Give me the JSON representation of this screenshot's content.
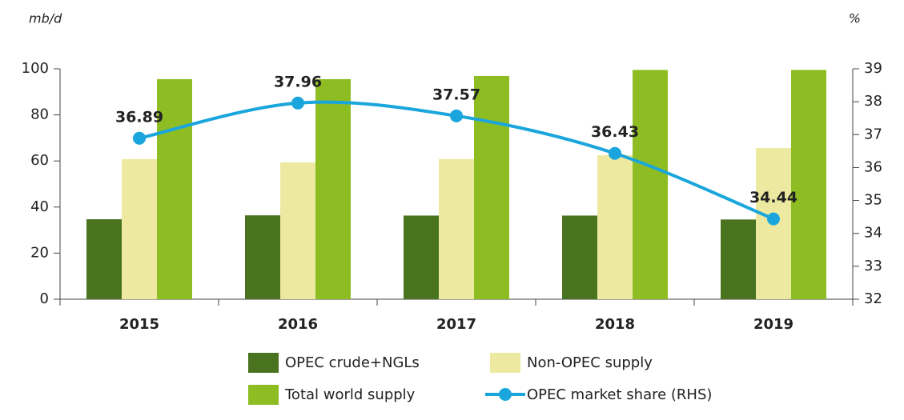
{
  "chart_data": {
    "type": "bar",
    "y_axis_label": "mb/d",
    "y2_axis_label": "%",
    "categories": [
      "2015",
      "2016",
      "2017",
      "2018",
      "2019"
    ],
    "series": [
      {
        "name": "OPEC crude+NGLs",
        "color": "#4a7320",
        "values": [
          34.7,
          36.4,
          36.3,
          36.3,
          34.6
        ]
      },
      {
        "name": "Non-OPEC supply",
        "color": "#ede9a0",
        "values": [
          60.8,
          59.4,
          60.8,
          62.5,
          65.6
        ]
      },
      {
        "name": "Total world supply",
        "color": "#8ebd23",
        "values": [
          95.5,
          95.5,
          96.9,
          99.5,
          99.5
        ]
      },
      {
        "name": "OPEC market share (RHS)",
        "type": "line",
        "axis": "y2",
        "color": "#1aa6dc",
        "values": [
          36.89,
          37.96,
          37.57,
          36.43,
          34.44
        ]
      }
    ],
    "ylim": [
      0,
      100
    ],
    "yticks": [
      0,
      20,
      40,
      60,
      80,
      100
    ],
    "y2lim": [
      32,
      39
    ],
    "y2ticks": [
      32,
      33,
      34,
      35,
      36,
      37,
      38,
      39
    ],
    "grid": false,
    "legend": "bottom"
  }
}
